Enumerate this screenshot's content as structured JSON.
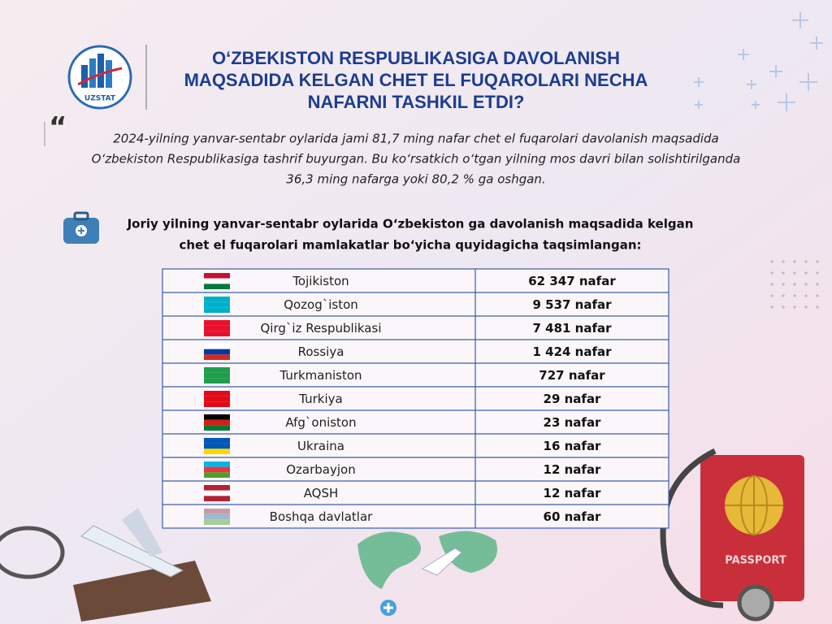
{
  "header": {
    "logo_text": "UZSTAT",
    "title_lines": [
      "O‘ZBEKISTON RESPUBLIKASIGA DAVOLANISH",
      "MAQSADIDA KELGAN CHET EL FUQAROLARI NECHA",
      "NAFARNI TASHKIL ETDI?"
    ]
  },
  "quote": {
    "mark": "“",
    "lines": [
      "2024-yilning yanvar-sentabr oylarida jami 81,7 ming nafar chet el fuqarolari davolanish maqsadida",
      "O‘zbekiston Respublikasiga tashrif buyurgan.  Bu ko‘rsatkich o‘tgan yilning mos davri bilan solishtirilganda",
      "36,3 ming nafarga yoki 80,2 % ga oshgan."
    ]
  },
  "subtitle": {
    "lines": [
      "Joriy yilning yanvar-sentabr oylarida O‘zbekiston ga davolanish maqsadida kelgan",
      "chet el fuqarolari mamlakatlar bo‘yicha quyidagicha taqsimlangan:"
    ]
  },
  "table": {
    "rows": [
      [
        "Tojikiston",
        "62 347 nafar"
      ],
      [
        "Qozog`iston",
        "9 537 nafar"
      ],
      [
        "Qirg`iz Respublikasi",
        "7 481 nafar"
      ],
      [
        "Rossiya",
        "1 424 nafar"
      ],
      [
        "Turkmaniston",
        "727 nafar"
      ],
      [
        "Turkiya",
        "29 nafar"
      ],
      [
        "Afg`oniston",
        "23 nafar"
      ],
      [
        "Ukraina",
        "16 nafar"
      ],
      [
        "Ozarbayjon",
        "12 nafar"
      ],
      [
        "AQSH",
        "12 nafar"
      ],
      [
        "Boshqa davlatlar",
        "60 nafar"
      ]
    ]
  },
  "decor": {
    "passport": "PASSPORT"
  }
}
